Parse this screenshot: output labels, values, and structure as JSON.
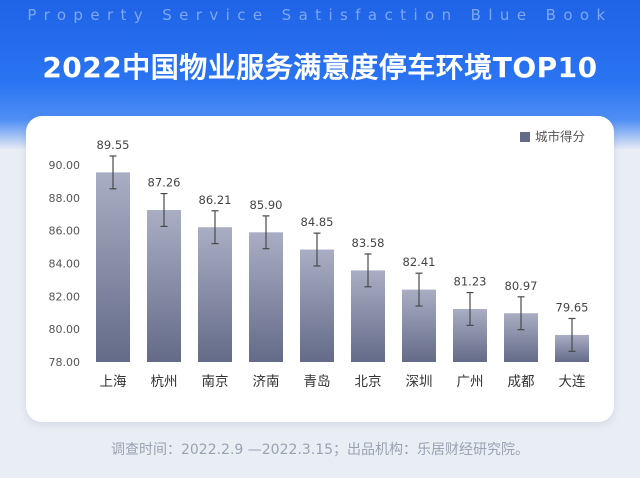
{
  "header": {
    "banner_en": "Property Service Satisfaction Blue Book",
    "title": "2022中国物业服务满意度停车环境TOP10"
  },
  "footer": {
    "note": "调查时间：2022.2.9 —2022.3.15；出品机构：乐居财经研究院。"
  },
  "colors": {
    "bar_top": "#a9aec4",
    "bar_bottom": "#646b88",
    "error_bar": "#4a4a4a",
    "hero_blue": "#2a74f2"
  },
  "chart_data": {
    "type": "bar",
    "categories": [
      "上海",
      "杭州",
      "南京",
      "济南",
      "青岛",
      "北京",
      "深圳",
      "广州",
      "成都",
      "大连"
    ],
    "series": [
      {
        "name": "城市得分",
        "values": [
          89.55,
          87.26,
          86.21,
          85.9,
          84.85,
          83.58,
          82.41,
          81.23,
          80.97,
          79.65
        ],
        "data_labels": [
          "89.55",
          "87.26",
          "86.21",
          "85.90",
          "84.85",
          "83.58",
          "82.41",
          "81.23",
          "80.97",
          "79.65"
        ]
      }
    ],
    "error_bar": 1.0,
    "ylim": [
      78,
      90
    ],
    "yticks": [
      78,
      80,
      82,
      84,
      86,
      88,
      90
    ],
    "ytick_labels": [
      "78.00",
      "80.00",
      "82.00",
      "84.00",
      "86.00",
      "88.00",
      "90.00"
    ],
    "title": "",
    "xlabel": "",
    "ylabel": "",
    "grid": false,
    "legend": "top-right"
  }
}
